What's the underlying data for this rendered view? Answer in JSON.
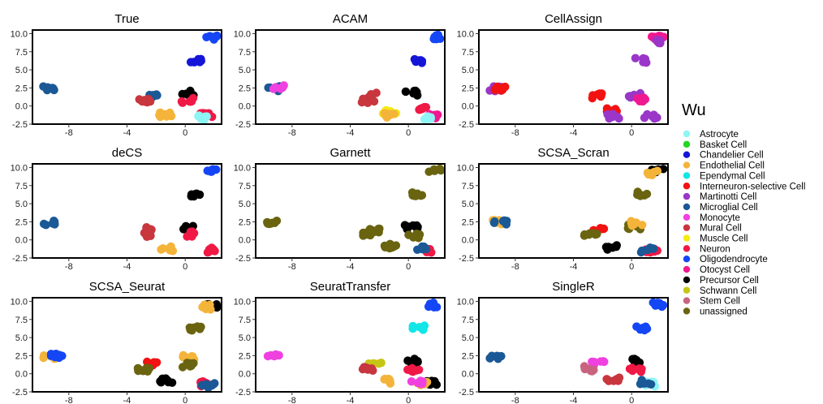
{
  "chart_data": {
    "type": "scatter",
    "shared": {
      "xlim": [
        -10.5,
        2.5
      ],
      "ylim": [
        -2.5,
        10.5
      ],
      "x_ticks": [
        -8,
        -4,
        0
      ],
      "x_tick_labels": [
        "-8",
        "-4",
        "0"
      ],
      "y_ticks": [
        10,
        7.5,
        5,
        2.5,
        0,
        -2.5
      ],
      "y_tick_labels": [
        "10.0",
        "7.5",
        "5.0",
        "2.5",
        "0.0",
        "-2.5"
      ],
      "grid": false
    },
    "legend": {
      "title": "Wu",
      "placement": "right",
      "entries": [
        {
          "label": "Astrocyte",
          "color": "#8ef5f5"
        },
        {
          "label": "Basket Cell",
          "color": "#22d622"
        },
        {
          "label": "Chandelier Cell",
          "color": "#1515d8"
        },
        {
          "label": "Endothelial Cell",
          "color": "#f4b43a"
        },
        {
          "label": "Ependymal Cell",
          "color": "#12e6e6"
        },
        {
          "label": "Interneuron-selective Cell",
          "color": "#f21212"
        },
        {
          "label": "Martinotti Cell",
          "color": "#9a36c8"
        },
        {
          "label": "Microglial Cell",
          "color": "#1b5896"
        },
        {
          "label": "Monocyte",
          "color": "#f040e0"
        },
        {
          "label": "Mural Cell",
          "color": "#c8363e"
        },
        {
          "label": "Muscle Cell",
          "color": "#f6ea12"
        },
        {
          "label": "Neuron",
          "color": "#f01845"
        },
        {
          "label": "Oligodendrocyte",
          "color": "#1446f6"
        },
        {
          "label": "Otocyst Cell",
          "color": "#f01890"
        },
        {
          "label": "Precursor Cell",
          "color": "#000000"
        },
        {
          "label": "Schwann Cell",
          "color": "#c6c616"
        },
        {
          "label": "Stem Cell",
          "color": "#c86480"
        },
        {
          "label": "unassigned",
          "color": "#6a6410"
        }
      ]
    },
    "panels": [
      {
        "title": "True",
        "clusters": [
          {
            "label": "Microglial Cell",
            "x": -9.3,
            "y": 2.4
          },
          {
            "label": "Oligodendrocyte",
            "x": 1.8,
            "y": 9.5
          },
          {
            "label": "Chandelier Cell",
            "x": 0.7,
            "y": 6.2
          },
          {
            "label": "Precursor Cell",
            "x": 0.2,
            "y": 1.8
          },
          {
            "label": "Microglial Cell",
            "x": -2.3,
            "y": 1.5
          },
          {
            "label": "Mural Cell",
            "x": -2.8,
            "y": 0.7
          },
          {
            "label": "Endothelial Cell",
            "x": -1.4,
            "y": -1.2
          },
          {
            "label": "Neuron",
            "x": 0.2,
            "y": 0.8
          },
          {
            "label": "Neuron",
            "x": 1.5,
            "y": -1.3
          },
          {
            "label": "Astrocyte",
            "x": 1.3,
            "y": -1.6
          }
        ]
      },
      {
        "title": "ACAM",
        "clusters": [
          {
            "label": "Microglial Cell",
            "x": -9.3,
            "y": 2.4
          },
          {
            "label": "Monocyte",
            "x": -9.0,
            "y": 2.5
          },
          {
            "label": "Oligodendrocyte",
            "x": 1.8,
            "y": 9.5
          },
          {
            "label": "Chandelier Cell",
            "x": 0.7,
            "y": 6.3
          },
          {
            "label": "Precursor Cell",
            "x": 0.2,
            "y": 1.8
          },
          {
            "label": "Mural Cell",
            "x": -2.3,
            "y": 1.5
          },
          {
            "label": "Mural Cell",
            "x": -2.8,
            "y": 0.7
          },
          {
            "label": "Muscle Cell",
            "x": -1.3,
            "y": -0.7
          },
          {
            "label": "Endothelial Cell",
            "x": -1.4,
            "y": -1.3
          },
          {
            "label": "Neuron",
            "x": 0.8,
            "y": -0.5
          },
          {
            "label": "Otocyst Cell",
            "x": 1.6,
            "y": -1.4
          },
          {
            "label": "Astrocyte",
            "x": 1.2,
            "y": -1.6
          }
        ]
      },
      {
        "title": "CellAssign",
        "clusters": [
          {
            "label": "Martinotti Cell",
            "x": -9.3,
            "y": 2.4
          },
          {
            "label": "Interneuron-selective Cell",
            "x": -9.1,
            "y": 2.5
          },
          {
            "label": "Otocyst Cell",
            "x": 1.8,
            "y": 9.5
          },
          {
            "label": "Martinotti Cell",
            "x": 1.6,
            "y": 9.0
          },
          {
            "label": "Martinotti Cell",
            "x": 0.6,
            "y": 6.3
          },
          {
            "label": "Martinotti Cell",
            "x": 0.2,
            "y": 1.5
          },
          {
            "label": "Interneuron-selective Cell",
            "x": -2.3,
            "y": 1.4
          },
          {
            "label": "Interneuron-selective Cell",
            "x": -1.3,
            "y": -0.5
          },
          {
            "label": "Martinotti Cell",
            "x": -1.2,
            "y": -1.4
          },
          {
            "label": "Martinotti Cell",
            "x": 1.3,
            "y": -1.4
          },
          {
            "label": "Otocyst Cell",
            "x": 0.6,
            "y": 0.8
          }
        ]
      },
      {
        "title": "deCS",
        "clusters": [
          {
            "label": "Microglial Cell",
            "x": -9.3,
            "y": 2.4
          },
          {
            "label": "Oligodendrocyte",
            "x": 1.8,
            "y": 9.5
          },
          {
            "label": "Precursor Cell",
            "x": 0.6,
            "y": 6.2
          },
          {
            "label": "Precursor Cell",
            "x": 0.2,
            "y": 1.8
          },
          {
            "label": "Mural Cell",
            "x": -2.3,
            "y": 1.5
          },
          {
            "label": "Mural Cell",
            "x": -2.8,
            "y": 0.7
          },
          {
            "label": "Endothelial Cell",
            "x": -1.3,
            "y": -1.2
          },
          {
            "label": "Neuron",
            "x": 0.3,
            "y": 0.8
          },
          {
            "label": "Neuron",
            "x": 1.6,
            "y": -1.4
          }
        ]
      },
      {
        "title": "Garnett",
        "clusters": [
          {
            "label": "unassigned",
            "x": -9.3,
            "y": 2.4
          },
          {
            "label": "unassigned",
            "x": 1.8,
            "y": 9.5
          },
          {
            "label": "unassigned",
            "x": 0.7,
            "y": 6.3
          },
          {
            "label": "Precursor Cell",
            "x": 0.2,
            "y": 1.8
          },
          {
            "label": "unassigned",
            "x": -2.3,
            "y": 1.4
          },
          {
            "label": "unassigned",
            "x": -2.8,
            "y": 0.7
          },
          {
            "label": "unassigned",
            "x": -1.3,
            "y": -0.8
          },
          {
            "label": "unassigned",
            "x": 0.4,
            "y": 0.6
          },
          {
            "label": "Neuron",
            "x": 1.6,
            "y": -1.4
          },
          {
            "label": "Microglial Cell",
            "x": 0.9,
            "y": -1.2
          }
        ]
      },
      {
        "title": "SCSA_Scran",
        "clusters": [
          {
            "label": "Endothelial Cell",
            "x": -9.3,
            "y": 2.4
          },
          {
            "label": "Microglial Cell",
            "x": -9.0,
            "y": 2.5
          },
          {
            "label": "Precursor Cell",
            "x": 1.8,
            "y": 9.5
          },
          {
            "label": "Endothelial Cell",
            "x": 1.5,
            "y": 9.3
          },
          {
            "label": "unassigned",
            "x": 0.7,
            "y": 6.3
          },
          {
            "label": "unassigned",
            "x": 0.2,
            "y": 1.8
          },
          {
            "label": "Endothelial Cell",
            "x": 0.3,
            "y": 2.3
          },
          {
            "label": "Interneuron-selective Cell",
            "x": -2.3,
            "y": 1.4
          },
          {
            "label": "unassigned",
            "x": -2.8,
            "y": 0.7
          },
          {
            "label": "Precursor Cell",
            "x": -1.3,
            "y": -1.0
          },
          {
            "label": "Neuron",
            "x": 1.4,
            "y": -1.4
          },
          {
            "label": "Microglial Cell",
            "x": 1.1,
            "y": -1.4
          }
        ]
      },
      {
        "title": "SCSA_Seurat",
        "clusters": [
          {
            "label": "Endothelial Cell",
            "x": -9.3,
            "y": 2.4
          },
          {
            "label": "Oligodendrocyte",
            "x": -8.8,
            "y": 2.5
          },
          {
            "label": "Precursor Cell",
            "x": 1.8,
            "y": 9.5
          },
          {
            "label": "Endothelial Cell",
            "x": 1.4,
            "y": 9.2
          },
          {
            "label": "unassigned",
            "x": 0.7,
            "y": 6.3
          },
          {
            "label": "Endothelial Cell",
            "x": 0.2,
            "y": 2.3
          },
          {
            "label": "unassigned",
            "x": 0.2,
            "y": 1.2
          },
          {
            "label": "Interneuron-selective Cell",
            "x": -2.3,
            "y": 1.4
          },
          {
            "label": "unassigned",
            "x": -2.8,
            "y": 0.6
          },
          {
            "label": "Precursor Cell",
            "x": -1.3,
            "y": -1.0
          },
          {
            "label": "Neuron",
            "x": 1.3,
            "y": -1.4
          },
          {
            "label": "Microglial Cell",
            "x": 1.6,
            "y": -1.6
          }
        ]
      },
      {
        "title": "SeuratTransfer",
        "clusters": [
          {
            "label": "Monocyte",
            "x": -9.3,
            "y": 2.4
          },
          {
            "label": "Oligodendrocyte",
            "x": 1.8,
            "y": 9.5
          },
          {
            "label": "Ependymal Cell",
            "x": 0.7,
            "y": 6.3
          },
          {
            "label": "Precursor Cell",
            "x": 0.2,
            "y": 1.8
          },
          {
            "label": "Schwann Cell",
            "x": -2.3,
            "y": 1.4
          },
          {
            "label": "Mural Cell",
            "x": -2.8,
            "y": 0.7
          },
          {
            "label": "Endothelial Cell",
            "x": -1.3,
            "y": -1.0
          },
          {
            "label": "Neuron",
            "x": 0.3,
            "y": 0.6
          },
          {
            "label": "Precursor Cell",
            "x": 1.5,
            "y": -1.3
          },
          {
            "label": "Endothelial Cell",
            "x": 1.0,
            "y": -1.5
          },
          {
            "label": "Monocyte",
            "x": 0.6,
            "y": -1.2
          }
        ]
      },
      {
        "title": "SingleR",
        "clusters": [
          {
            "label": "Microglial Cell",
            "x": -9.3,
            "y": 2.4
          },
          {
            "label": "Oligodendrocyte",
            "x": 1.8,
            "y": 9.5
          },
          {
            "label": "Oligodendrocyte",
            "x": 0.7,
            "y": 6.3
          },
          {
            "label": "Precursor Cell",
            "x": 0.2,
            "y": 1.8
          },
          {
            "label": "Monocyte",
            "x": -2.3,
            "y": 1.4
          },
          {
            "label": "Stem Cell",
            "x": -2.8,
            "y": 0.7
          },
          {
            "label": "Mural Cell",
            "x": -1.3,
            "y": -0.9
          },
          {
            "label": "Neuron",
            "x": 0.3,
            "y": 0.6
          },
          {
            "label": "Astrocyte",
            "x": 1.4,
            "y": -1.4
          },
          {
            "label": "Microglial Cell",
            "x": 0.9,
            "y": -1.2
          }
        ]
      }
    ]
  }
}
